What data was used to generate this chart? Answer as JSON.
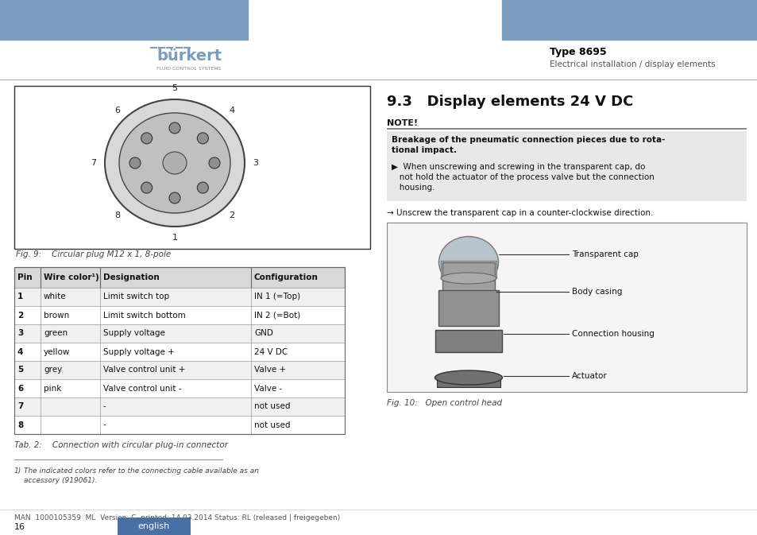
{
  "page_bg": "#ffffff",
  "header_bar_color": "#7a9cbe",
  "burkert_text": "bürkert",
  "burkert_subtitle": "FLUID CONTROL SYSTEMS",
  "burkert_color": "#7a9cbe",
  "burkert_subtitle_color": "#888888",
  "type_title": "Type 8695",
  "type_subtitle": "Electrical installation / display elements",
  "type_title_color": "#000000",
  "type_subtitle_color": "#555555",
  "separator_color": "#aaaaaa",
  "section_title": "9.3   Display elements 24 V DC",
  "note_label": "NOTE!",
  "note_box_bg": "#e8e8e8",
  "note_bold_text": "Breakage of the pneumatic connection pieces due to rota-\ntional impact.",
  "note_body_text": "▶  When unscrewing and screwing in the transparent cap, do\n   not hold the actuator of the process valve but the connection\n   housing.",
  "arrow_text": "→ Unscrew the transparent cap in a counter-clockwise direction.",
  "fig9_caption": "Fig. 9:    Circular plug M12 x 1, 8-pole",
  "fig10_caption": "Fig. 10:   Open control head",
  "table_header": [
    "Pin",
    "Wire color¹⧀",
    "Designation",
    "Configuration"
  ],
  "table_header2": [
    "Pin",
    "Wire color¹)",
    "Designation",
    "Configuration"
  ],
  "table_rows": [
    [
      "1",
      "white",
      "Limit switch top",
      "IN 1 (=Top)"
    ],
    [
      "2",
      "brown",
      "Limit switch bottom",
      "IN 2 (=Bot)"
    ],
    [
      "3",
      "green",
      "Supply voltage",
      "GND"
    ],
    [
      "4",
      "yellow",
      "Supply voltage +",
      "24 V DC"
    ],
    [
      "5",
      "grey",
      "Valve control unit +",
      "Valve +"
    ],
    [
      "6",
      "pink",
      "Valve control unit -",
      "Valve -"
    ],
    [
      "7",
      "",
      "-",
      "not used"
    ],
    [
      "8",
      "",
      "-",
      "not used"
    ]
  ],
  "table_caption": "Tab. 2:    Connection with circular plug-in connector",
  "transparent_cap_label": "Transparent cap",
  "body_casing_label": "Body casing",
  "connection_housing_label": "Connection housing",
  "actuator_label": "Actuator",
  "footnote_superscript": "1)",
  "footnote_text": "The indicated colors refer to the connecting cable available as an\naccessory (919061).",
  "footer_man": "MAN  1000105359  ML  Version: C  printed: 14.03.2014 Status: RL (released | freigegeben)",
  "footer_page": "16",
  "footer_lang_bg": "#4a6fa5",
  "footer_lang_text": "english",
  "connector_pin_angles_deg": [
    270,
    315,
    0,
    45,
    90,
    135,
    180,
    225
  ],
  "connector_pin_labels": [
    "1",
    "2",
    "3",
    "4",
    "5",
    "6",
    "7",
    "8"
  ]
}
